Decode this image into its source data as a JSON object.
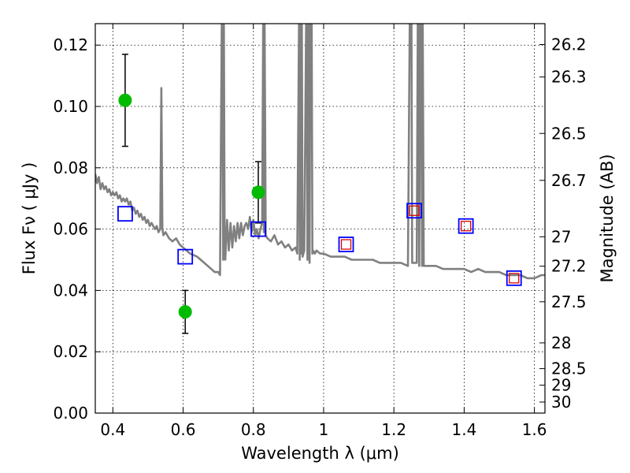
{
  "chart_data": {
    "type": "scatter",
    "title": "",
    "xlabel": "Wavelength  λ (μm)",
    "ylabel": "Flux  Fν  ( μJy )",
    "y2label": "Magnitude (AB)",
    "xlim": [
      0.35,
      1.63
    ],
    "ylim": [
      0.0,
      0.127
    ],
    "grid": true,
    "x_ticks": [
      0.4,
      0.6,
      0.8,
      1.0,
      1.2,
      1.4,
      1.6
    ],
    "x_tick_labels": [
      "0.4",
      "0.6",
      "0.8",
      "1",
      "1.2",
      "1.4",
      "1.6"
    ],
    "y_ticks": [
      0.0,
      0.02,
      0.04,
      0.06,
      0.08,
      0.1,
      0.12
    ],
    "y_tick_labels": [
      "0.00",
      "0.02",
      "0.04",
      "0.06",
      "0.08",
      "0.10",
      "0.12"
    ],
    "y2_ticks": [
      {
        "label": "26.2",
        "flux": 0.1202
      },
      {
        "label": "26.3",
        "flux": 0.1096
      },
      {
        "label": "26.5",
        "flux": 0.0912
      },
      {
        "label": "26.7",
        "flux": 0.0759
      },
      {
        "label": "27",
        "flux": 0.0575
      },
      {
        "label": "27.2",
        "flux": 0.0479
      },
      {
        "label": "27.5",
        "flux": 0.0363
      },
      {
        "label": "28",
        "flux": 0.0229
      },
      {
        "label": "28.5",
        "flux": 0.0145
      },
      {
        "label": "29",
        "flux": 0.0091
      },
      {
        "label": "30",
        "flux": 0.0036
      }
    ],
    "series": [
      {
        "kind": "spectrum",
        "color": "#808080",
        "x": [
          0.35,
          0.355,
          0.36,
          0.365,
          0.37,
          0.375,
          0.38,
          0.385,
          0.39,
          0.395,
          0.4,
          0.405,
          0.41,
          0.415,
          0.42,
          0.425,
          0.43,
          0.435,
          0.44,
          0.445,
          0.45,
          0.455,
          0.46,
          0.465,
          0.47,
          0.475,
          0.48,
          0.485,
          0.49,
          0.495,
          0.5,
          0.505,
          0.51,
          0.515,
          0.52,
          0.525,
          0.53,
          0.535,
          0.538,
          0.541,
          0.544,
          0.55,
          0.56,
          0.57,
          0.58,
          0.59,
          0.6,
          0.62,
          0.64,
          0.66,
          0.68,
          0.69,
          0.7,
          0.705,
          0.71,
          0.712,
          0.714,
          0.716,
          0.718,
          0.72,
          0.725,
          0.73,
          0.735,
          0.74,
          0.745,
          0.75,
          0.755,
          0.76,
          0.765,
          0.77,
          0.775,
          0.78,
          0.785,
          0.79,
          0.795,
          0.8,
          0.805,
          0.81,
          0.815,
          0.82,
          0.825,
          0.828,
          0.83,
          0.832,
          0.835,
          0.84,
          0.85,
          0.86,
          0.87,
          0.88,
          0.89,
          0.9,
          0.91,
          0.92,
          0.925,
          0.93,
          0.932,
          0.934,
          0.936,
          0.938,
          0.94,
          0.945,
          0.95,
          0.952,
          0.954,
          0.956,
          0.958,
          0.96,
          0.962,
          0.964,
          0.966,
          0.968,
          0.97,
          0.975,
          0.98,
          0.99,
          1.0,
          1.02,
          1.04,
          1.06,
          1.08,
          1.1,
          1.12,
          1.14,
          1.16,
          1.18,
          1.2,
          1.22,
          1.24,
          1.245,
          1.248,
          1.25,
          1.252,
          1.255,
          1.26,
          1.265,
          1.268,
          1.27,
          1.272,
          1.275,
          1.278,
          1.28,
          1.282,
          1.285,
          1.3,
          1.32,
          1.34,
          1.36,
          1.38,
          1.4,
          1.42,
          1.44,
          1.46,
          1.48,
          1.5,
          1.52,
          1.54,
          1.56,
          1.58,
          1.6,
          1.62,
          1.63
        ],
        "y": [
          0.078,
          0.075,
          0.077,
          0.073,
          0.075,
          0.073,
          0.074,
          0.072,
          0.073,
          0.071,
          0.072,
          0.071,
          0.072,
          0.07,
          0.071,
          0.069,
          0.07,
          0.069,
          0.07,
          0.068,
          0.069,
          0.066,
          0.067,
          0.065,
          0.066,
          0.064,
          0.065,
          0.063,
          0.064,
          0.062,
          0.063,
          0.061,
          0.062,
          0.061,
          0.06,
          0.061,
          0.059,
          0.06,
          0.106,
          0.06,
          0.058,
          0.059,
          0.057,
          0.056,
          0.057,
          0.055,
          0.054,
          0.052,
          0.051,
          0.049,
          0.047,
          0.046,
          0.046,
          0.045,
          0.127,
          0.127,
          0.05,
          0.127,
          0.06,
          0.05,
          0.063,
          0.053,
          0.062,
          0.054,
          0.061,
          0.056,
          0.062,
          0.057,
          0.062,
          0.058,
          0.061,
          0.062,
          0.06,
          0.064,
          0.059,
          0.063,
          0.058,
          0.06,
          0.057,
          0.06,
          0.062,
          0.127,
          0.059,
          0.127,
          0.058,
          0.057,
          0.056,
          0.058,
          0.055,
          0.056,
          0.054,
          0.055,
          0.053,
          0.054,
          0.052,
          0.127,
          0.05,
          0.127,
          0.052,
          0.127,
          0.051,
          0.053,
          0.127,
          0.127,
          0.05,
          0.127,
          0.127,
          0.049,
          0.127,
          0.127,
          0.127,
          0.052,
          0.053,
          0.052,
          0.053,
          0.052,
          0.052,
          0.051,
          0.051,
          0.051,
          0.05,
          0.05,
          0.05,
          0.05,
          0.049,
          0.049,
          0.049,
          0.049,
          0.048,
          0.127,
          0.127,
          0.127,
          0.049,
          0.049,
          0.049,
          0.049,
          0.127,
          0.127,
          0.048,
          0.127,
          0.127,
          0.048,
          0.127,
          0.048,
          0.048,
          0.048,
          0.047,
          0.047,
          0.047,
          0.047,
          0.046,
          0.047,
          0.046,
          0.046,
          0.046,
          0.045,
          0.045,
          0.045,
          0.044,
          0.044,
          0.045,
          0.045
        ]
      },
      {
        "kind": "points",
        "color": "#00bb00",
        "x": [
          0.435,
          0.606,
          0.814
        ],
        "y": [
          0.102,
          0.033,
          0.072
        ],
        "y_err_low": [
          0.087,
          0.026,
          0.062
        ],
        "y_err_high": [
          0.117,
          0.04,
          0.082
        ]
      },
      {
        "kind": "model-squares",
        "color": "#0000ff",
        "x": [
          0.435,
          0.606,
          0.814,
          1.064,
          1.258,
          1.405,
          1.542
        ],
        "y": [
          0.065,
          0.051,
          0.06,
          0.055,
          0.066,
          0.061,
          0.044
        ]
      },
      {
        "kind": "model-squares-small",
        "color": "#dd0000",
        "x": [
          1.064,
          1.258,
          1.405,
          1.542
        ],
        "y": [
          0.055,
          0.066,
          0.061,
          0.044
        ]
      }
    ]
  }
}
